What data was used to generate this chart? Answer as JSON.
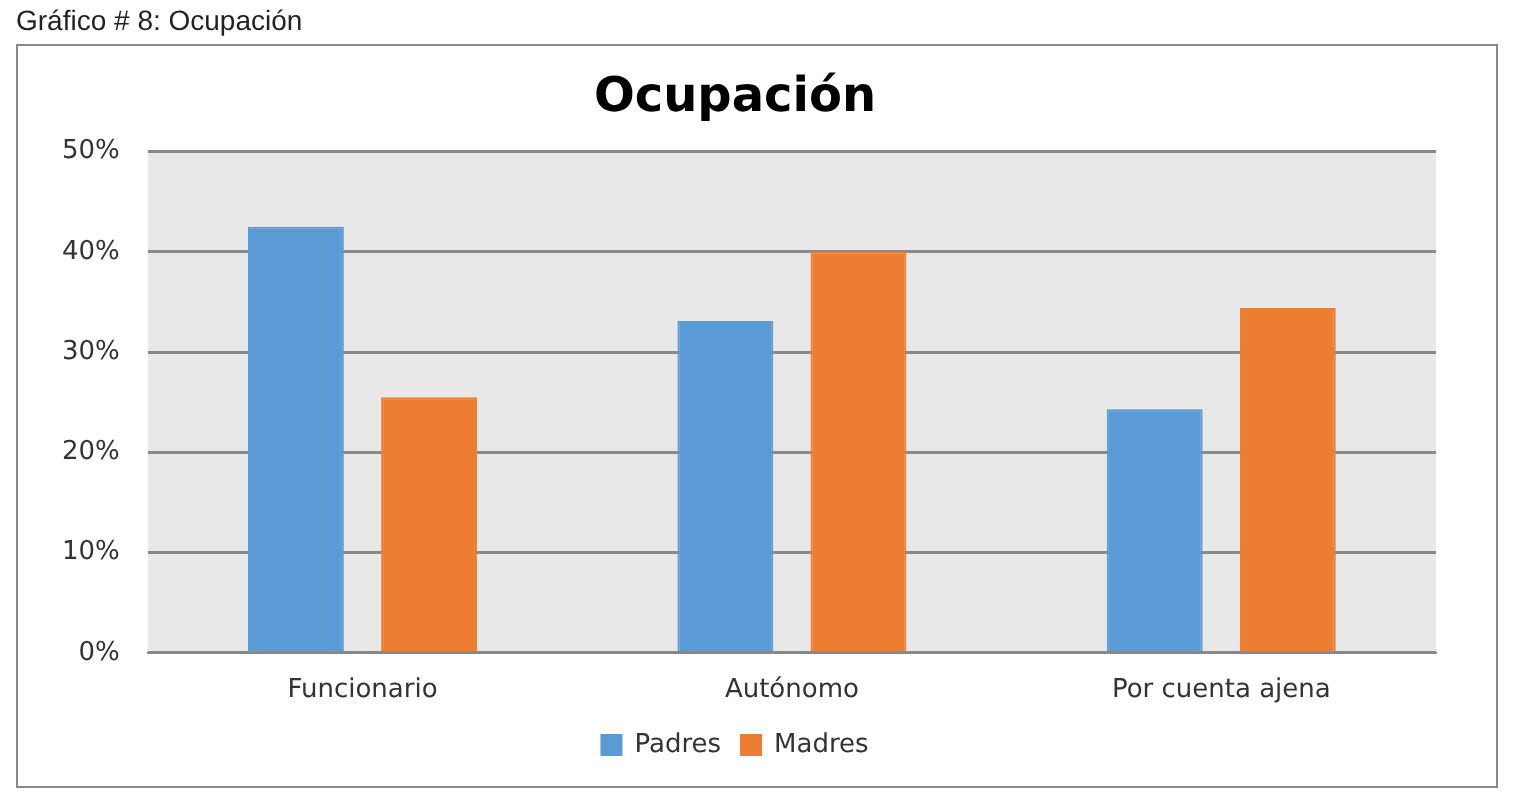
{
  "chart_data": {
    "type": "bar",
    "title": "Ocupación",
    "annotations": [
      "Gráfico # 8: Ocupación"
    ],
    "categories": [
      "Funcionario",
      "Autónomo",
      "Por cuenta ajena"
    ],
    "series": [
      {
        "name": "Padres",
        "color": "#5b9bd5",
        "values": [
          42.5,
          33.1,
          24.3
        ]
      },
      {
        "name": "Madres",
        "color": "#ed7d31",
        "values": [
          25.5,
          40.0,
          34.4
        ]
      }
    ],
    "ylim": [
      0,
      50
    ],
    "yticks": [
      {
        "value": 0,
        "label": "0%"
      },
      {
        "value": 10,
        "label": "10%"
      },
      {
        "value": 20,
        "label": "20%"
      },
      {
        "value": 30,
        "label": "30%"
      },
      {
        "value": 40,
        "label": "40%"
      },
      {
        "value": 50,
        "label": "50%"
      }
    ],
    "grid": "y",
    "legend": "bottom"
  }
}
